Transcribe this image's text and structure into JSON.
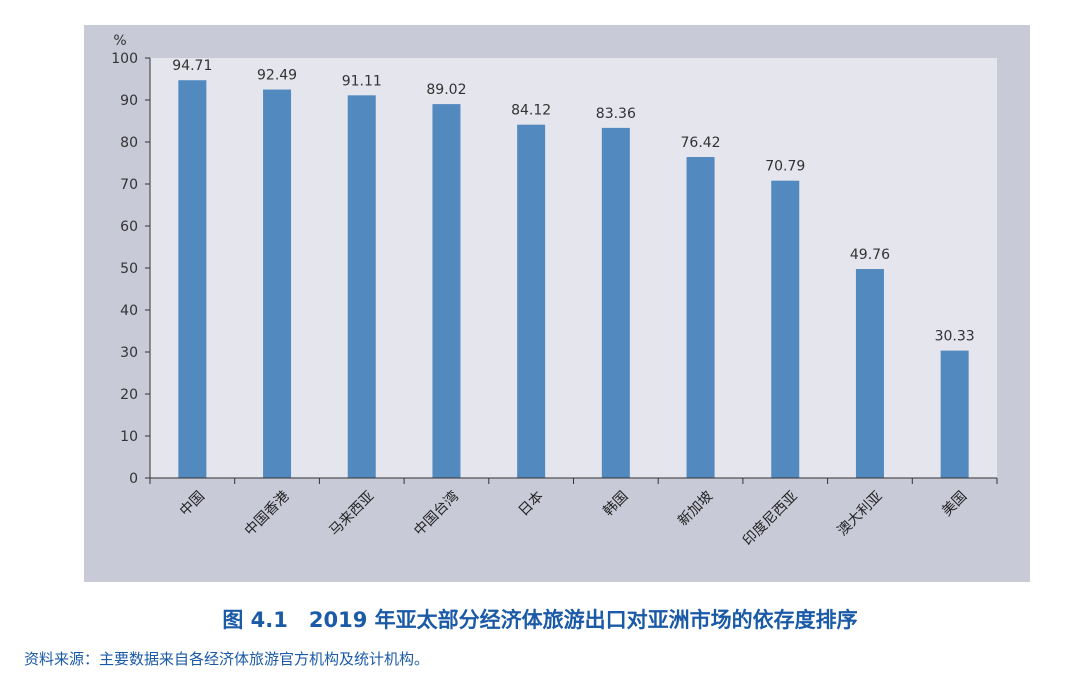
{
  "chart_data": {
    "type": "bar",
    "ylabel": "%",
    "ylim": [
      0,
      100
    ],
    "yticks": [
      0,
      10,
      20,
      30,
      40,
      50,
      60,
      70,
      80,
      90,
      100
    ],
    "categories": [
      "中国",
      "中国香港",
      "马来西亚",
      "中国台湾",
      "日本",
      "韩国",
      "新加坡",
      "印度尼西亚",
      "澳大利亚",
      "美国"
    ],
    "values": [
      94.71,
      92.49,
      91.11,
      89.02,
      84.12,
      83.36,
      76.42,
      70.79,
      49.76,
      30.33
    ],
    "data_labels": [
      "94.71",
      "92.49",
      "91.11",
      "89.02",
      "84.12",
      "83.36",
      "76.42",
      "70.79",
      "49.76",
      "30.33"
    ],
    "bar_color": "#5289bf",
    "plot_background": "#e4e5ed",
    "panel_background": "#c9cad8",
    "grid": false,
    "legend": false
  },
  "caption": "图 4.1　2019 年亚太部分经济体旅游出口对亚洲市场的依存度排序",
  "source": "资料来源：主要数据来自各经济体旅游官方机构及统计机构。"
}
